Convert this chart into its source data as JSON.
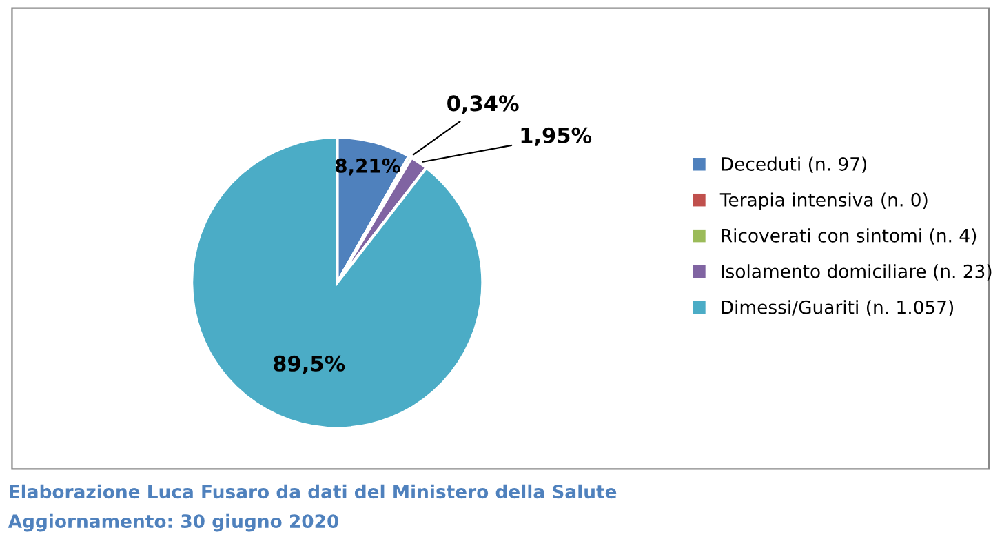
{
  "chart_data": {
    "type": "pie",
    "categories": [
      "Deceduti (n. 97)",
      "Terapia intensiva (n. 0)",
      "Ricoverati con sintomi (n. 4)",
      "Isolamento domiciliare (n. 23)",
      "Dimessi/Guariti (n. 1.057)"
    ],
    "values": [
      8.21,
      0,
      0.34,
      1.95,
      89.5
    ],
    "value_labels": [
      "8,21%",
      null,
      "0,34%",
      "1,95%",
      "89,5%"
    ],
    "colors": [
      "#4f81bd",
      "#c0504d",
      "#9bbb59",
      "#8064a2",
      "#4bacc6"
    ],
    "legend": "right",
    "annotations": [
      "Elaborazione Luca Fusaro da dati del Ministero della Salute",
      "Aggiornamento: 30 giugno 2020"
    ]
  }
}
